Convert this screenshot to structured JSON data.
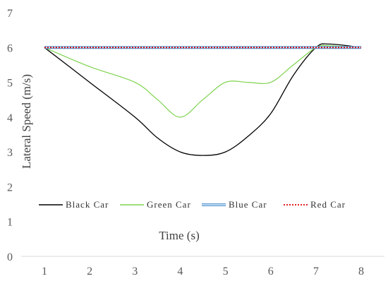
{
  "chart_data": {
    "type": "line",
    "xlabel": "Time (s)",
    "ylabel": "Lateral Speed (m/s)",
    "xlim": [
      1,
      8
    ],
    "ylim": [
      0,
      7
    ],
    "x_ticks": [
      1,
      2,
      3,
      4,
      5,
      6,
      7,
      8
    ],
    "y_ticks": [
      0,
      1,
      2,
      3,
      4,
      5,
      6,
      7
    ],
    "grid": false,
    "legend_position": "inside-bottom",
    "series": [
      {
        "name": "Black Car",
        "color": "#000000",
        "style": "solid",
        "x": [
          1,
          2,
          3,
          3.5,
          4,
          4.5,
          5,
          5.5,
          6,
          6.5,
          7,
          7.3,
          8
        ],
        "y": [
          6,
          5,
          4,
          3.4,
          3.0,
          2.9,
          3.0,
          3.45,
          4.1,
          5.2,
          6.0,
          6.1,
          6.0
        ]
      },
      {
        "name": "Green Car",
        "color": "#7ed34e",
        "style": "solid",
        "x": [
          1,
          2,
          3,
          3.5,
          4,
          4.5,
          5,
          5.5,
          6,
          6.5,
          7,
          7.3,
          8
        ],
        "y": [
          6,
          5.45,
          5.0,
          4.5,
          4.0,
          4.5,
          5.0,
          5.0,
          5.0,
          5.5,
          6.0,
          6.05,
          6.0
        ]
      },
      {
        "name": "Blue Car",
        "color": "#5b9bd5",
        "style": "double",
        "x": [
          1,
          2,
          3,
          4,
          5,
          6,
          7,
          8
        ],
        "y": [
          6,
          6,
          6,
          6,
          6,
          6,
          6,
          6
        ]
      },
      {
        "name": "Red Car",
        "color": "#e00000",
        "style": "dotted",
        "x": [
          1,
          2,
          3,
          4,
          5,
          6,
          7,
          8
        ],
        "y": [
          6,
          6,
          6,
          6,
          6,
          6,
          6,
          6
        ]
      }
    ]
  }
}
